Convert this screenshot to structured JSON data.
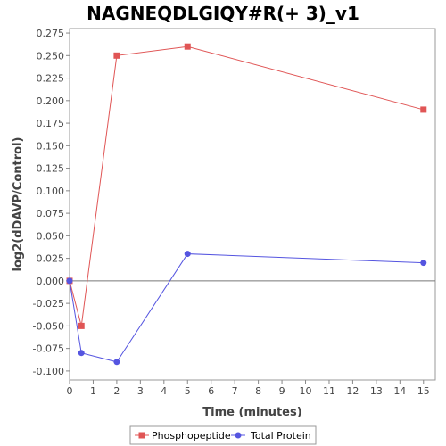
{
  "chart_data": {
    "type": "line",
    "title": "NAGNEQDLGIQY#R(+ 3)_v1",
    "xlabel": "Time (minutes)",
    "ylabel": "log2(dDAVP/Control)",
    "xlim": [
      0,
      15.5
    ],
    "ylim": [
      -0.11,
      0.28
    ],
    "x_ticks": [
      0,
      1,
      2,
      3,
      4,
      5,
      6,
      7,
      8,
      9,
      10,
      11,
      12,
      13,
      14,
      15
    ],
    "y_ticks": [
      -0.1,
      -0.075,
      -0.05,
      -0.025,
      0.0,
      0.025,
      0.05,
      0.075,
      0.1,
      0.125,
      0.15,
      0.175,
      0.2,
      0.225,
      0.25,
      0.275
    ],
    "y_tick_labels": [
      "-0.100",
      "-0.075",
      "-0.050",
      "-0.025",
      "0.000",
      "0.025",
      "0.050",
      "0.075",
      "0.100",
      "0.125",
      "0.150",
      "0.175",
      "0.200",
      "0.225",
      "0.250",
      "0.275"
    ],
    "grid": false,
    "zero_line": true,
    "legend_position": "bottom",
    "series": [
      {
        "name": "Phosphopeptide",
        "color": "#e05555",
        "marker": "square",
        "x": [
          0,
          0.5,
          2,
          5,
          15
        ],
        "y": [
          0.0,
          -0.05,
          0.25,
          0.26,
          0.19
        ]
      },
      {
        "name": "Total Protein",
        "color": "#5555e0",
        "marker": "circle",
        "x": [
          0,
          0.5,
          2,
          5,
          15
        ],
        "y": [
          0.0,
          -0.08,
          -0.09,
          0.03,
          0.02
        ]
      }
    ]
  }
}
